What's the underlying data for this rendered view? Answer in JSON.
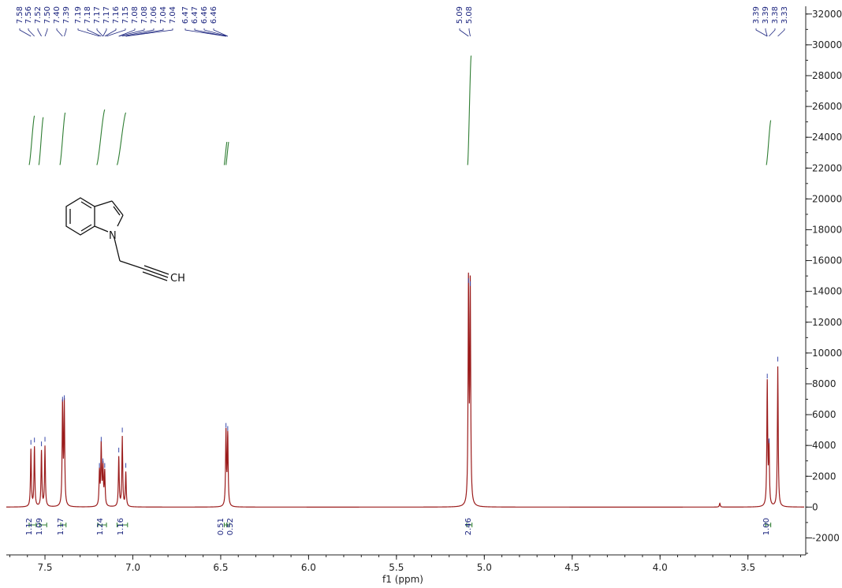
{
  "chart_data": {
    "type": "line",
    "xlabel": "f1 (ppm)",
    "ylabel": "",
    "xlim": [
      7.72,
      3.18
    ],
    "ylim": [
      -3000,
      32500
    ],
    "x_ticks": [
      "7.5",
      "7.0",
      "6.5",
      "6.0",
      "5.5",
      "5.0",
      "4.5",
      "4.0",
      "3.5"
    ],
    "y_ticks": [
      "32000",
      "30000",
      "28000",
      "26000",
      "24000",
      "22000",
      "20000",
      "18000",
      "16000",
      "14000",
      "12000",
      "10000",
      "8000",
      "6000",
      "4000",
      "2000",
      "0",
      "-2000"
    ],
    "grid": false,
    "series": [
      {
        "peaks": [
          {
            "ppm": 7.58,
            "height": 3700
          },
          {
            "ppm": 7.56,
            "height": 3850
          },
          {
            "ppm": 7.52,
            "height": 3600
          },
          {
            "ppm": 7.5,
            "height": 3900
          },
          {
            "ppm": 7.4,
            "height": 6500
          },
          {
            "ppm": 7.39,
            "height": 6600
          },
          {
            "ppm": 7.19,
            "height": 2200
          },
          {
            "ppm": 7.18,
            "height": 3900
          },
          {
            "ppm": 7.17,
            "height": 2500
          },
          {
            "ppm": 7.16,
            "height": 2200
          },
          {
            "ppm": 7.08,
            "height": 3200
          },
          {
            "ppm": 7.06,
            "height": 4500
          },
          {
            "ppm": 7.04,
            "height": 2200
          },
          {
            "ppm": 6.47,
            "height": 4800
          },
          {
            "ppm": 6.46,
            "height": 4600
          },
          {
            "ppm": 5.09,
            "height": 14200
          },
          {
            "ppm": 5.08,
            "height": 14000
          },
          {
            "ppm": 3.39,
            "height": 8000
          },
          {
            "ppm": 3.38,
            "height": 3800
          },
          {
            "ppm": 3.33,
            "height": 9100
          },
          {
            "ppm": 3.66,
            "height": 250
          }
        ]
      }
    ],
    "peak_labels": [
      "7.58",
      "7.56",
      "7.52",
      "7.50",
      "7.40",
      "7.39",
      "7.19",
      "7.18",
      "7.17",
      "7.17",
      "7.16",
      "7.15",
      "7.08",
      "7.08",
      "7.06",
      "7.04",
      "7.04",
      "6.47",
      "6.47",
      "6.46",
      "6.46",
      "5.09",
      "5.08",
      "3.39",
      "3.39",
      "3.38",
      "3.33"
    ],
    "integrals": [
      {
        "value": "1.12",
        "from": 7.59,
        "to": 7.55
      },
      {
        "value": "1.09",
        "from": 7.53,
        "to": 7.49
      },
      {
        "value": "1.17",
        "from": 7.41,
        "to": 7.38
      },
      {
        "value": "1.24",
        "from": 7.2,
        "to": 7.15
      },
      {
        "value": "1.16",
        "from": 7.09,
        "to": 7.03
      },
      {
        "value": "0.51",
        "from": 6.48,
        "to": 6.465
      },
      {
        "value": "0.52",
        "from": 6.465,
        "to": 6.45
      },
      {
        "value": "2.46",
        "from": 5.1,
        "to": 5.07
      },
      {
        "value": "1.00",
        "from": 3.4,
        "to": 3.37
      }
    ],
    "integral_curves": [
      {
        "from": 7.59,
        "to": 7.56,
        "y0": 22200,
        "y1": 25400
      },
      {
        "from": 7.535,
        "to": 7.51,
        "y0": 22200,
        "y1": 25300
      },
      {
        "from": 7.415,
        "to": 7.385,
        "y0": 22200,
        "y1": 25600
      },
      {
        "from": 7.205,
        "to": 7.16,
        "y0": 22200,
        "y1": 25800
      },
      {
        "from": 7.09,
        "to": 7.04,
        "y0": 22200,
        "y1": 25600
      },
      {
        "from": 6.48,
        "to": 6.465,
        "y0": 22200,
        "y1": 23700
      },
      {
        "from": 6.47,
        "to": 6.455,
        "y0": 22200,
        "y1": 23700
      },
      {
        "from": 5.095,
        "to": 5.075,
        "y0": 22200,
        "y1": 29300
      },
      {
        "from": 3.395,
        "to": 3.37,
        "y0": 22200,
        "y1": 25100
      }
    ],
    "molecule": {
      "atoms": [
        "N",
        "CH"
      ]
    },
    "colors": {
      "spectrum": "#9b1c1c",
      "peak_labels": "#1a237e",
      "integrals": "#2e7d32",
      "axis": "#222222"
    }
  }
}
